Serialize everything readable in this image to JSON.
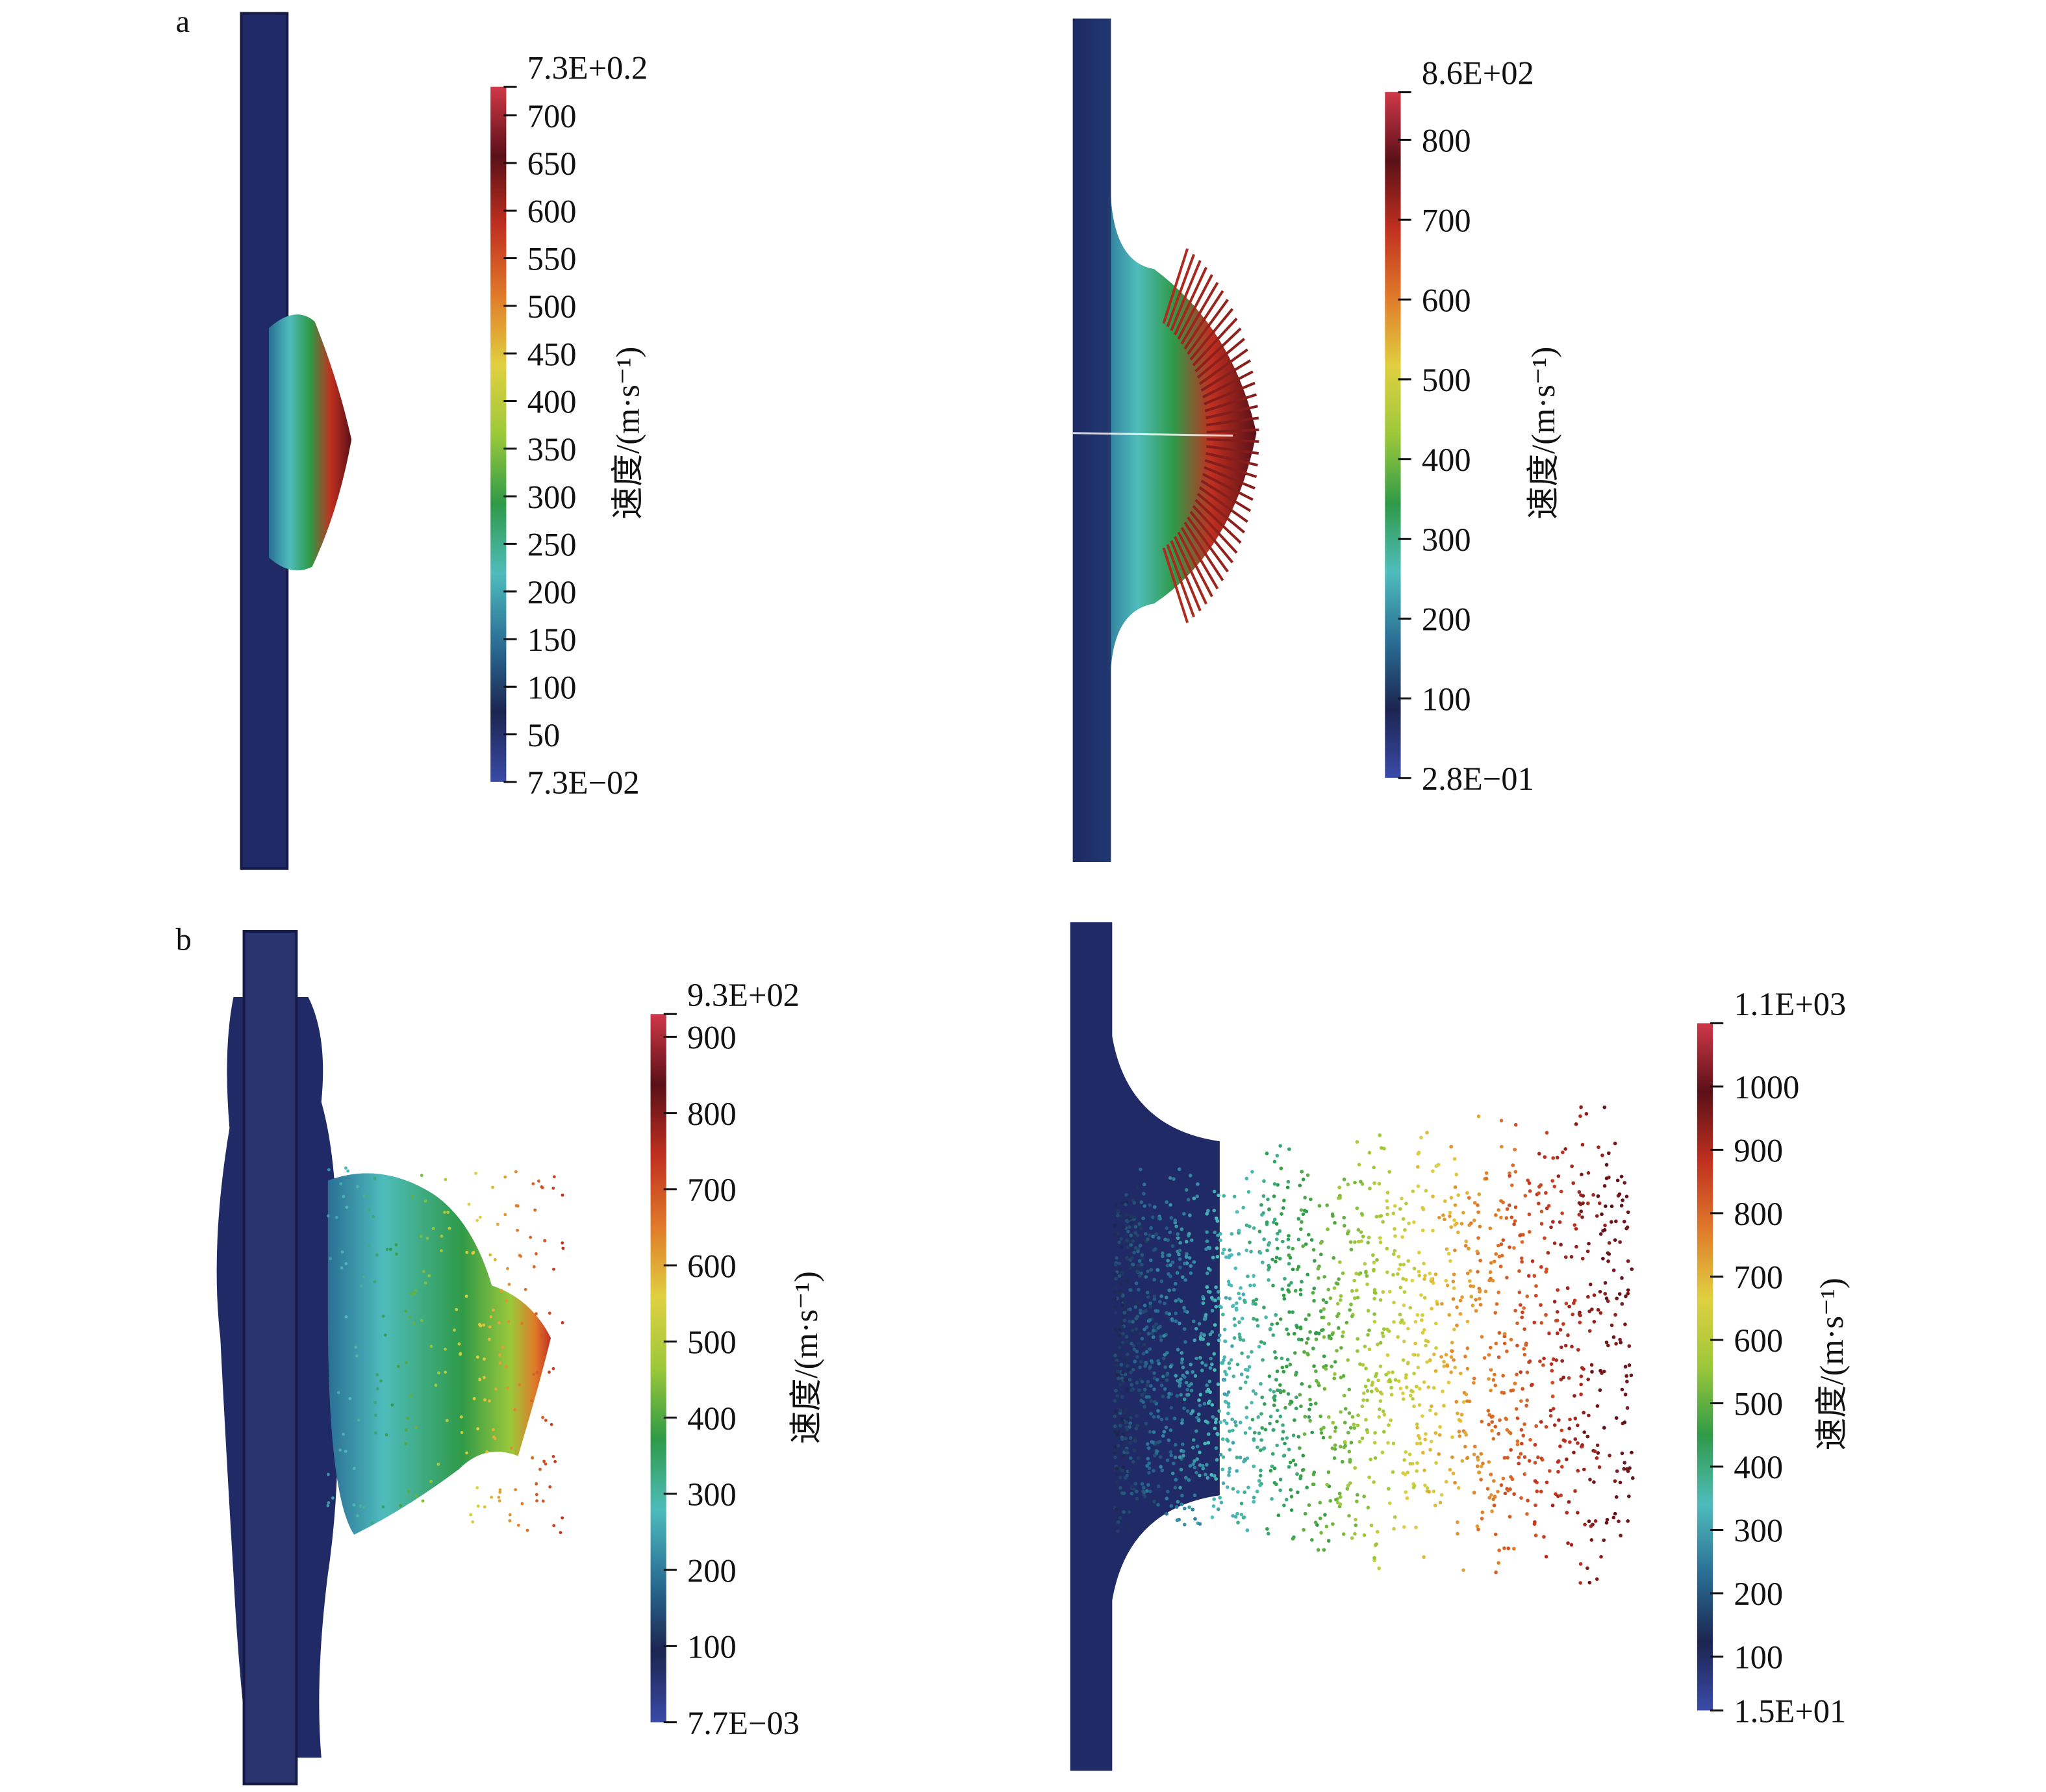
{
  "figure": {
    "panel_labels": [
      "a",
      "b"
    ],
    "unit_label": "速度/(m·s⁻¹)",
    "colormap": [
      "#3a4ba8",
      "#1c2550",
      "#2a6f95",
      "#4fbcbc",
      "#2f9a48",
      "#9cc83a",
      "#e0d040",
      "#e07a2a",
      "#c03020",
      "#5a1018",
      "#d03848"
    ],
    "panels": [
      {
        "id": "a-left",
        "colorbar": {
          "min": 0.073,
          "max": 730,
          "ticks": [
            {
              "label": "7.3E+0.2",
              "value": 730
            },
            {
              "label": "700",
              "value": 700
            },
            {
              "label": "650",
              "value": 650
            },
            {
              "label": "600",
              "value": 600
            },
            {
              "label": "550",
              "value": 550
            },
            {
              "label": "500",
              "value": 500
            },
            {
              "label": "450",
              "value": 450
            },
            {
              "label": "400",
              "value": 400
            },
            {
              "label": "350",
              "value": 350
            },
            {
              "label": "300",
              "value": 300
            },
            {
              "label": "250",
              "value": 250
            },
            {
              "label": "200",
              "value": 200
            },
            {
              "label": "150",
              "value": 150
            },
            {
              "label": "100",
              "value": 100
            },
            {
              "label": "50",
              "value": 50
            },
            {
              "label": "7.3E−02",
              "value": 0.073
            }
          ]
        }
      },
      {
        "id": "a-right",
        "colorbar": {
          "min": 0.28,
          "max": 860,
          "ticks": [
            {
              "label": "8.6E+02",
              "value": 860
            },
            {
              "label": "800",
              "value": 800
            },
            {
              "label": "700",
              "value": 700
            },
            {
              "label": "600",
              "value": 600
            },
            {
              "label": "500",
              "value": 500
            },
            {
              "label": "400",
              "value": 400
            },
            {
              "label": "300",
              "value": 300
            },
            {
              "label": "200",
              "value": 200
            },
            {
              "label": "100",
              "value": 100
            },
            {
              "label": "2.8E−01",
              "value": 0.28
            }
          ]
        }
      },
      {
        "id": "b-left",
        "colorbar": {
          "min": 0.0077,
          "max": 930,
          "ticks": [
            {
              "label": "9.3E+02",
              "value": 930
            },
            {
              "label": "900",
              "value": 900
            },
            {
              "label": "800",
              "value": 800
            },
            {
              "label": "700",
              "value": 700
            },
            {
              "label": "600",
              "value": 600
            },
            {
              "label": "500",
              "value": 500
            },
            {
              "label": "400",
              "value": 400
            },
            {
              "label": "300",
              "value": 300
            },
            {
              "label": "200",
              "value": 200
            },
            {
              "label": "100",
              "value": 100
            },
            {
              "label": "7.7E−03",
              "value": 0.0077
            }
          ]
        }
      },
      {
        "id": "b-right",
        "colorbar": {
          "min": 15,
          "max": 1100,
          "ticks": [
            {
              "label": "1.1E+03",
              "value": 1100
            },
            {
              "label": "1000",
              "value": 1000
            },
            {
              "label": "900",
              "value": 900
            },
            {
              "label": "800",
              "value": 800
            },
            {
              "label": "700",
              "value": 700
            },
            {
              "label": "600",
              "value": 600
            },
            {
              "label": "500",
              "value": 500
            },
            {
              "label": "400",
              "value": 400
            },
            {
              "label": "300",
              "value": 300
            },
            {
              "label": "200",
              "value": 200
            },
            {
              "label": "100",
              "value": 100
            },
            {
              "label": "1.5E+01",
              "value": 15
            }
          ]
        }
      }
    ]
  }
}
